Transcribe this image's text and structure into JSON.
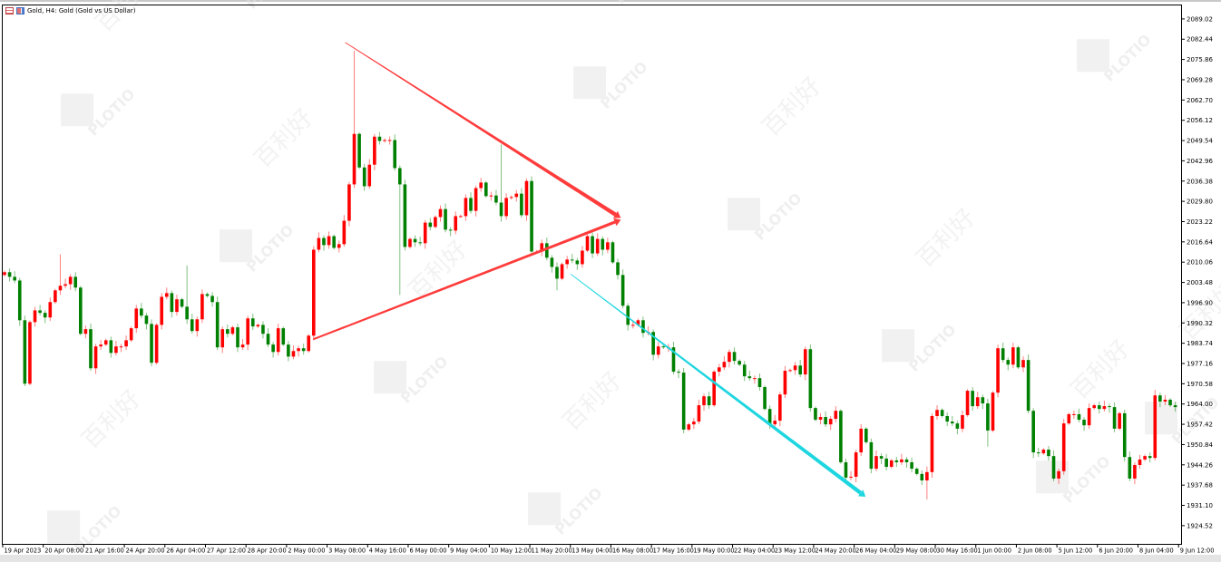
{
  "window": {
    "title": "Gold, H4:  Gold (Gold vs US Dollar)",
    "icons": [
      "chart-grid-icon",
      "symbol-compare-icon"
    ]
  },
  "watermark": {
    "brand": "PLOTIO",
    "cn": "百利好"
  },
  "chart_data": {
    "type": "candlestick",
    "symbol": "Gold",
    "timeframe": "H4",
    "ylim": [
      1918.6,
      2093.4
    ],
    "grid": false,
    "colors": {
      "up": "#ff0000",
      "down": "#008000",
      "trend_red": "#ff3b3b",
      "trend_cyan": "#1ed6e0"
    },
    "y_ticks": [
      "2089.02",
      "2082.44",
      "2075.86",
      "2069.28",
      "2062.70",
      "2056.12",
      "2049.54",
      "2042.96",
      "2036.38",
      "2029.80",
      "2023.22",
      "2016.64",
      "2010.06",
      "2003.48",
      "1996.90",
      "1990.32",
      "1983.74",
      "1977.16",
      "1970.58",
      "1964.00",
      "1957.42",
      "1950.84",
      "1944.26",
      "1937.68",
      "1931.10",
      "1924.52"
    ],
    "x_ticks": [
      "19 Apr 2023",
      "20 Apr 08:00",
      "21 Apr 16:00",
      "24 Apr 20:00",
      "26 Apr 04:00",
      "27 Apr 12:00",
      "28 Apr 20:00",
      "2 May 00:00",
      "3 May 08:00",
      "4 May 16:00",
      "6 May 00:00",
      "9 May 04:00",
      "10 May 12:00",
      "11 May 20:00",
      "13 May 04:00",
      "16 May 08:00",
      "17 May 16:00",
      "19 May 00:00",
      "22 May 04:00",
      "23 May 12:00",
      "24 May 20:00",
      "26 May 04:00",
      "29 May 08:00",
      "30 May 16:00",
      "1 Jun 00:00",
      "2 Jun 08:00",
      "5 Jun 12:00",
      "6 Jun 20:00",
      "8 Jun 04:00",
      "9 Jun 12:00"
    ],
    "bars_per_x_tick": 8,
    "first_open": 2005.9,
    "close": [
      2006.8,
      2005.3,
      2004.1,
      1991.2,
      1970.6,
      1990.6,
      1994.4,
      1993.6,
      1992.1,
      1997.1,
      2000.9,
      2002.4,
      2002.9,
      2005.3,
      2001.8,
      1986.8,
      1988.3,
      1975.6,
      1982.7,
      1983.3,
      1984.7,
      1980.6,
      1982.7,
      1982.7,
      1984.7,
      1988.6,
      1995.0,
      1992.7,
      1990.0,
      1977.4,
      1989.7,
      1998.8,
      2000.0,
      1993.9,
      1998.0,
      1995.6,
      1991.5,
      1987.7,
      1991.5,
      1999.7,
      1999.1,
      1997.1,
      1982.4,
      1988.3,
      1986.8,
      1988.9,
      1982.4,
      1983.3,
      1991.8,
      1989.2,
      1989.7,
      1986.8,
      1983.3,
      1980.9,
      1988.6,
      1983.3,
      1979.4,
      1981.2,
      1982.1,
      1981.2,
      1986.2,
      2014.1,
      2017.9,
      2015.6,
      2018.5,
      2014.7,
      2015.9,
      2023.5,
      2035.3,
      2051.7,
      2040.8,
      2034.7,
      2041.7,
      2050.8,
      2049.4,
      2049.7,
      2049.7,
      2040.6,
      2035.3,
      2015.0,
      2017.6,
      2016.5,
      2016.2,
      2022.9,
      2021.5,
      2024.7,
      2027.3,
      2020.6,
      2020.3,
      2025.0,
      2025.0,
      2030.9,
      2026.7,
      2034.1,
      2035.9,
      2031.5,
      2031.7,
      2029.4,
      2025.0,
      2030.9,
      2031.2,
      2032.3,
      2025.3,
      2036.4,
      2013.5,
      2013.5,
      2016.2,
      2011.5,
      2008.5,
      2004.7,
      2009.4,
      2010.9,
      2010.6,
      2009.4,
      2013.8,
      2018.5,
      2012.9,
      2017.6,
      2014.1,
      2016.5,
      2010.0,
      2005.9,
      1995.9,
      1989.7,
      1989.7,
      1991.2,
      1987.1,
      1987.4,
      1980.0,
      1982.7,
      1982.4,
      1982.4,
      1974.5,
      1974.2,
      1955.7,
      1957.4,
      1958.3,
      1963.6,
      1966.5,
      1963.6,
      1974.5,
      1975.9,
      1977.7,
      1980.9,
      1978.0,
      1976.8,
      1973.0,
      1972.4,
      1972.4,
      1969.5,
      1962.4,
      1957.4,
      1958.6,
      1967.1,
      1974.8,
      1975.0,
      1976.5,
      1973.6,
      1981.8,
      1962.7,
      1958.9,
      1959.8,
      1957.4,
      1959.2,
      1961.8,
      1945.1,
      1940.1,
      1940.4,
      1948.3,
      1956.0,
      1951.6,
      1943.0,
      1947.1,
      1946.3,
      1943.6,
      1945.7,
      1945.1,
      1946.0,
      1945.1,
      1943.0,
      1941.3,
      1939.2,
      1941.9,
      1960.1,
      1962.1,
      1960.1,
      1958.3,
      1957.7,
      1956.0,
      1960.4,
      1968.3,
      1963.3,
      1966.2,
      1964.2,
      1955.4,
      1967.7,
      1982.1,
      1978.3,
      1976.8,
      1982.4,
      1975.9,
      1978.3,
      1961.8,
      1948.3,
      1948.0,
      1949.2,
      1947.1,
      1939.8,
      1942.2,
      1957.7,
      1960.7,
      1960.7,
      1958.9,
      1957.1,
      1962.7,
      1963.6,
      1962.4,
      1963.3,
      1963.0,
      1956.0,
      1961.0,
      1946.8,
      1939.8,
      1944.2,
      1946.0,
      1947.1,
      1946.5,
      1966.8,
      1964.8,
      1965.4,
      1963.6,
      1963.0
    ],
    "typical_wick": 1.3,
    "wick_extremes": [
      {
        "bar": 4,
        "low": 1969.8
      },
      {
        "bar": 11,
        "high": 2012.6
      },
      {
        "bar": 36,
        "high": 2009.0
      },
      {
        "bar": 69,
        "high": 2078.7
      },
      {
        "bar": 78,
        "low": 1999.4
      },
      {
        "bar": 98,
        "high": 2048.3
      },
      {
        "bar": 109,
        "low": 2000.9
      },
      {
        "bar": 182,
        "low": 1933.0
      },
      {
        "bar": 194,
        "low": 1950.2
      }
    ],
    "drawings": [
      {
        "type": "trendline",
        "color": "#ff3b3b",
        "from": {
          "bar": 67.2,
          "price": 2081.4
        },
        "to": {
          "bar": 121.6,
          "price": 2024.4
        },
        "arrow": true,
        "taper": true
      },
      {
        "type": "trendline",
        "color": "#ff3b3b",
        "from": {
          "bar": 60.9,
          "price": 1985.0
        },
        "to": {
          "bar": 121.6,
          "price": 2023.8
        },
        "arrow": true,
        "taper": false
      },
      {
        "type": "trendline",
        "color": "#1ed6e0",
        "from": {
          "bar": 111.7,
          "price": 2006.2
        },
        "to": {
          "bar": 169.9,
          "price": 1933.9
        },
        "arrow": true,
        "taper": true
      }
    ]
  }
}
